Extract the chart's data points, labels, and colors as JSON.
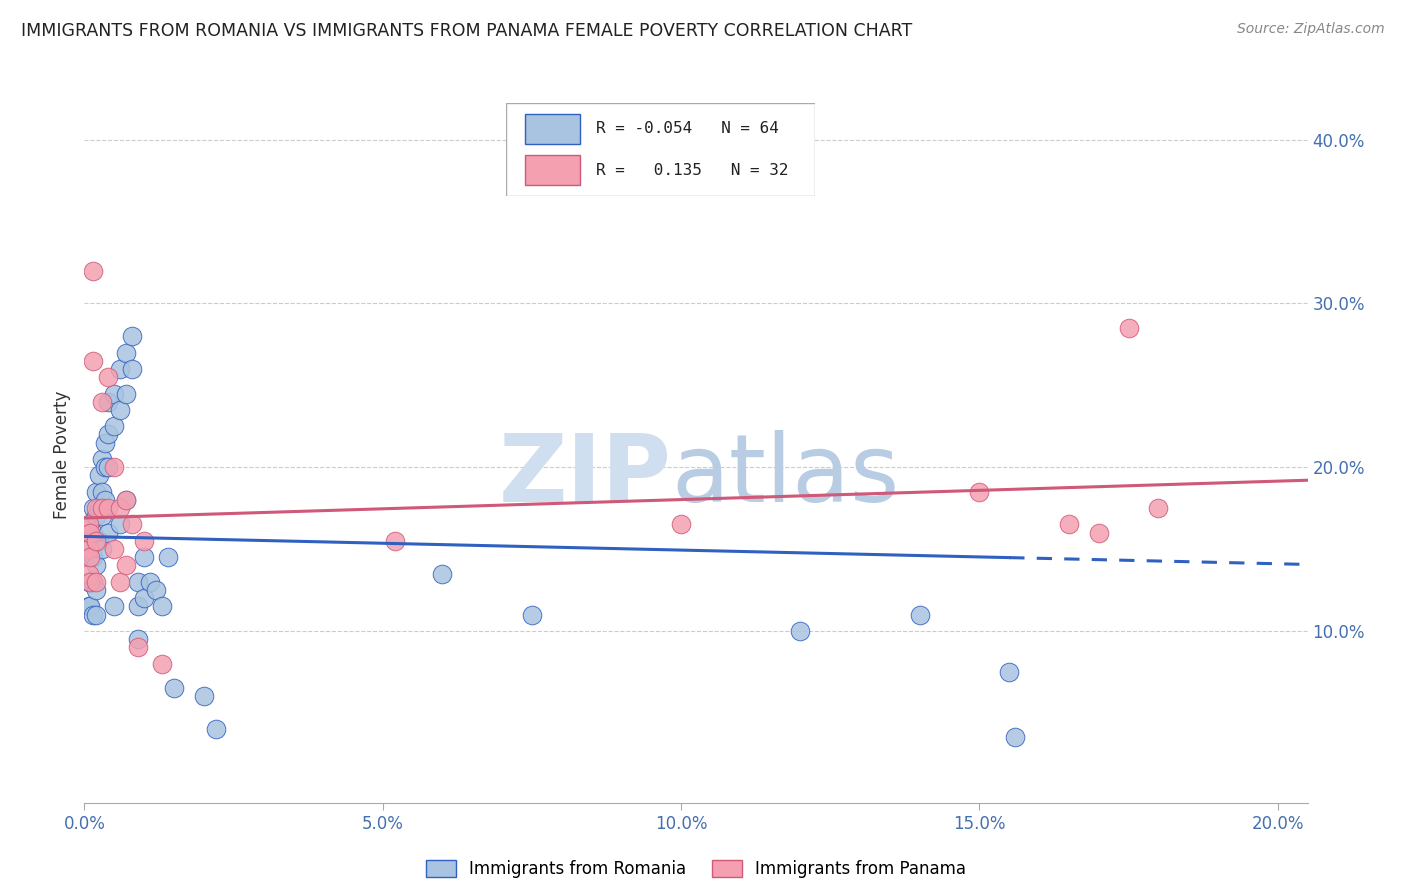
{
  "title": "IMMIGRANTS FROM ROMANIA VS IMMIGRANTS FROM PANAMA FEMALE POVERTY CORRELATION CHART",
  "source": "Source: ZipAtlas.com",
  "ylabel": "Female Poverty",
  "xlim": [
    0,
    0.205
  ],
  "ylim": [
    -0.005,
    0.42
  ],
  "yticks_right": [
    0.1,
    0.2,
    0.3,
    0.4
  ],
  "ytick_labels_right": [
    "10.0%",
    "20.0%",
    "30.0%",
    "40.0%"
  ],
  "xtick_positions": [
    0.0,
    0.05,
    0.1,
    0.15,
    0.2
  ],
  "xtick_labels": [
    "0.0%",
    "5.0%",
    "10.0%",
    "15.0%",
    "20.0%"
  ],
  "romania_R": -0.054,
  "panama_R": 0.135,
  "romania_color": "#a8c4e0",
  "panama_color": "#f4a0b0",
  "romania_line_color": "#3060c0",
  "panama_line_color": "#d05878",
  "grid_color": "#cccccc",
  "romania_x": [
    0.0008,
    0.0008,
    0.0008,
    0.0008,
    0.001,
    0.001,
    0.001,
    0.001,
    0.0015,
    0.0015,
    0.0015,
    0.0015,
    0.0015,
    0.002,
    0.002,
    0.002,
    0.002,
    0.002,
    0.002,
    0.0025,
    0.0025,
    0.0025,
    0.003,
    0.003,
    0.003,
    0.003,
    0.0035,
    0.0035,
    0.0035,
    0.004,
    0.004,
    0.004,
    0.004,
    0.005,
    0.005,
    0.005,
    0.006,
    0.006,
    0.006,
    0.007,
    0.007,
    0.007,
    0.008,
    0.008,
    0.009,
    0.009,
    0.009,
    0.01,
    0.01,
    0.011,
    0.012,
    0.013,
    0.014,
    0.015,
    0.02,
    0.022,
    0.06,
    0.075,
    0.12,
    0.14,
    0.155,
    0.156
  ],
  "romania_y": [
    0.165,
    0.15,
    0.13,
    0.115,
    0.16,
    0.145,
    0.13,
    0.115,
    0.175,
    0.16,
    0.145,
    0.13,
    0.11,
    0.185,
    0.17,
    0.155,
    0.14,
    0.125,
    0.11,
    0.195,
    0.175,
    0.155,
    0.205,
    0.185,
    0.17,
    0.15,
    0.215,
    0.2,
    0.18,
    0.24,
    0.22,
    0.2,
    0.16,
    0.245,
    0.225,
    0.115,
    0.26,
    0.235,
    0.165,
    0.27,
    0.245,
    0.18,
    0.28,
    0.26,
    0.13,
    0.115,
    0.095,
    0.145,
    0.12,
    0.13,
    0.125,
    0.115,
    0.145,
    0.065,
    0.06,
    0.04,
    0.135,
    0.11,
    0.1,
    0.11,
    0.075,
    0.035
  ],
  "panama_x": [
    0.0008,
    0.0008,
    0.0008,
    0.001,
    0.001,
    0.001,
    0.0015,
    0.0015,
    0.002,
    0.002,
    0.002,
    0.003,
    0.003,
    0.004,
    0.004,
    0.005,
    0.005,
    0.006,
    0.006,
    0.007,
    0.007,
    0.008,
    0.009,
    0.01,
    0.013,
    0.052,
    0.1,
    0.15,
    0.165,
    0.17,
    0.175,
    0.18
  ],
  "panama_y": [
    0.165,
    0.15,
    0.135,
    0.16,
    0.145,
    0.13,
    0.32,
    0.265,
    0.175,
    0.155,
    0.13,
    0.24,
    0.175,
    0.255,
    0.175,
    0.2,
    0.15,
    0.175,
    0.13,
    0.18,
    0.14,
    0.165,
    0.09,
    0.155,
    0.08,
    0.155,
    0.165,
    0.185,
    0.165,
    0.16,
    0.285,
    0.175
  ]
}
